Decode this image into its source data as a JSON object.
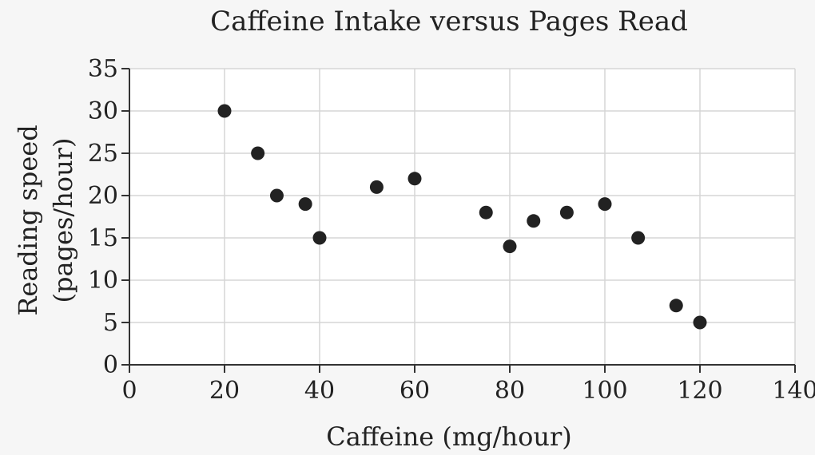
{
  "chart_data": {
    "type": "scatter",
    "title": "Caffeine Intake versus Pages Read",
    "xlabel": "Caffeine (mg/hour)",
    "ylabel_line1": "Reading speed",
    "ylabel_line2": "(pages/hour)",
    "xlim": [
      0,
      140
    ],
    "ylim": [
      0,
      35
    ],
    "xticks": [
      0,
      20,
      40,
      60,
      80,
      100,
      120,
      140
    ],
    "yticks": [
      0,
      5,
      10,
      15,
      20,
      25,
      30,
      35
    ],
    "grid": true,
    "points": [
      {
        "x": 20,
        "y": 30
      },
      {
        "x": 27,
        "y": 25
      },
      {
        "x": 31,
        "y": 20
      },
      {
        "x": 37,
        "y": 19
      },
      {
        "x": 40,
        "y": 15
      },
      {
        "x": 52,
        "y": 21
      },
      {
        "x": 60,
        "y": 22
      },
      {
        "x": 75,
        "y": 18
      },
      {
        "x": 80,
        "y": 14
      },
      {
        "x": 85,
        "y": 17
      },
      {
        "x": 92,
        "y": 18
      },
      {
        "x": 100,
        "y": 19
      },
      {
        "x": 107,
        "y": 15
      },
      {
        "x": 115,
        "y": 7
      },
      {
        "x": 120,
        "y": 5
      }
    ],
    "colors": {
      "point": "#222222",
      "grid": "#d6d6d6",
      "axis": "#333333",
      "background": "#ffffff"
    }
  }
}
